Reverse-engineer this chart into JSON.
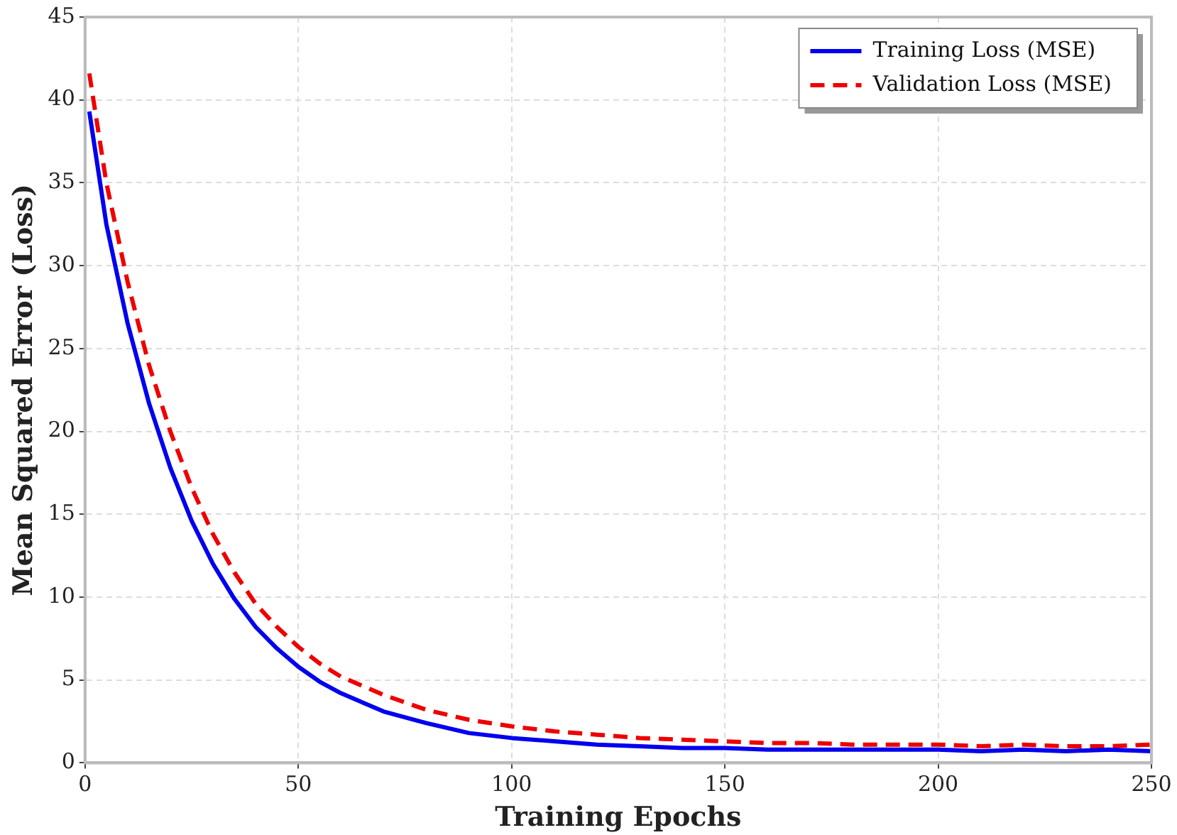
{
  "chart_data": {
    "type": "line",
    "xlabel": "Training Epochs",
    "ylabel": "Mean Squared Error (Loss)",
    "xlim": [
      0,
      250
    ],
    "xticks": [
      0,
      50,
      100,
      150,
      200,
      250
    ],
    "ylim": [
      0,
      45
    ],
    "yticks": [
      0,
      5,
      10,
      15,
      20,
      25,
      30,
      35,
      40,
      45
    ],
    "grid": true,
    "legend": "top right",
    "marker": "none",
    "x": [
      1,
      5,
      10,
      15,
      20,
      25,
      30,
      35,
      40,
      45,
      50,
      55,
      60,
      70,
      80,
      90,
      100,
      110,
      120,
      130,
      140,
      150,
      160,
      170,
      180,
      190,
      200,
      210,
      220,
      230,
      240,
      250
    ],
    "series": [
      {
        "name": "Training Loss (MSE)",
        "color": "#0000ee",
        "line_style": "solid",
        "values": [
          39.3,
          32.5,
          26.5,
          21.7,
          17.8,
          14.6,
          12.0,
          9.9,
          8.2,
          6.9,
          5.8,
          4.9,
          4.2,
          3.1,
          2.4,
          1.8,
          1.5,
          1.3,
          1.1,
          1.0,
          0.9,
          0.9,
          0.8,
          0.8,
          0.8,
          0.8,
          0.8,
          0.7,
          0.8,
          0.7,
          0.8,
          0.7
        ]
      },
      {
        "name": "Validation Loss (MSE)",
        "color": "#ee0000",
        "line_style": "dashed",
        "values": [
          41.6,
          35,
          29,
          24,
          20,
          16.6,
          13.8,
          11.5,
          9.6,
          8.2,
          7.0,
          6.0,
          5.2,
          4.1,
          3.2,
          2.6,
          2.2,
          1.9,
          1.7,
          1.5,
          1.4,
          1.3,
          1.2,
          1.2,
          1.1,
          1.1,
          1.1,
          1.0,
          1.1,
          1.0,
          1.0,
          1.1
        ]
      }
    ]
  }
}
